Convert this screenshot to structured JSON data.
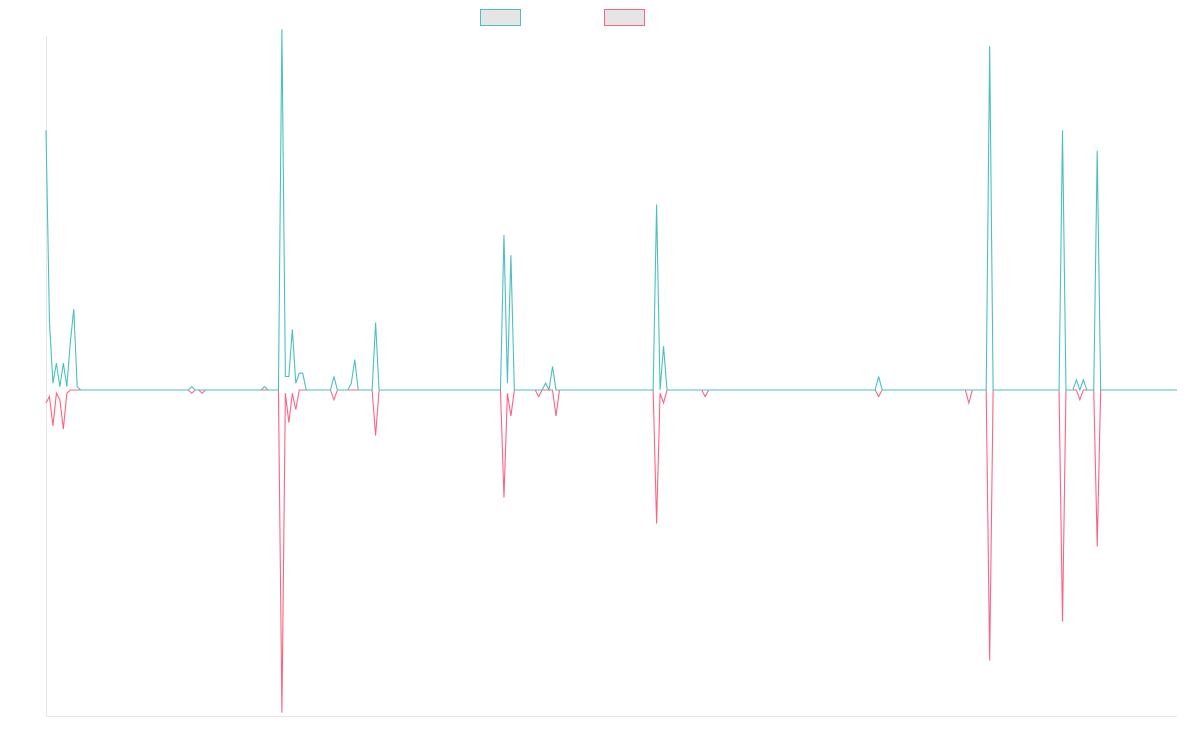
{
  "chart_data": {
    "type": "line",
    "title": "",
    "xlabel": "",
    "ylabel": "",
    "ylim": [
      -1.0,
      1.05
    ],
    "xlim": [
      0,
      326
    ],
    "grid": false,
    "legend_position": "top",
    "colors": {
      "series_1": "#4bc0c0",
      "series_2": "#ff6384",
      "legend_fill": "#e5e5e5"
    },
    "series": [
      {
        "legend_label": "",
        "points": [
          [
            0,
            0.77
          ],
          [
            1,
            0.2
          ],
          [
            2,
            0.02
          ],
          [
            3,
            0.08
          ],
          [
            4,
            0.01
          ],
          [
            5,
            0.08
          ],
          [
            6,
            0.01
          ],
          [
            7,
            0.14
          ],
          [
            8,
            0.24
          ],
          [
            9,
            0.01
          ],
          [
            10,
            0.0
          ],
          [
            41,
            0.0
          ],
          [
            42,
            0.01
          ],
          [
            43,
            0.0
          ],
          [
            44,
            0.0
          ],
          [
            45,
            0.0
          ],
          [
            46,
            0.0
          ],
          [
            47,
            0.0
          ],
          [
            54,
            0.0
          ],
          [
            62,
            0.0
          ],
          [
            63,
            0.01
          ],
          [
            64,
            0.0
          ],
          [
            67,
            0.0
          ],
          [
            68,
            1.07
          ],
          [
            69,
            0.04
          ],
          [
            70,
            0.04
          ],
          [
            71,
            0.18
          ],
          [
            72,
            0.02
          ],
          [
            73,
            0.05
          ],
          [
            74,
            0.05
          ],
          [
            75,
            0.0
          ],
          [
            82,
            0.0
          ],
          [
            83,
            0.04
          ],
          [
            84,
            0.0
          ],
          [
            87,
            0.0
          ],
          [
            88,
            0.02
          ],
          [
            89,
            0.09
          ],
          [
            90,
            0.0
          ],
          [
            94,
            0.0
          ],
          [
            95,
            0.2
          ],
          [
            96,
            0.0
          ],
          [
            103,
            0.0
          ],
          [
            104,
            0.0
          ],
          [
            105,
            0.0
          ],
          [
            118,
            0.0
          ],
          [
            119,
            0.0
          ],
          [
            120,
            0.0
          ],
          [
            131,
            0.0
          ],
          [
            132,
            0.46
          ],
          [
            133,
            0.02
          ],
          [
            134,
            0.4
          ],
          [
            135,
            0.0
          ],
          [
            137,
            0.0
          ],
          [
            138,
            0.0
          ],
          [
            139,
            0.0
          ],
          [
            140,
            0.0
          ],
          [
            141,
            0.0
          ],
          [
            142,
            0.0
          ],
          [
            143,
            0.0
          ],
          [
            144,
            0.02
          ],
          [
            145,
            0.0
          ],
          [
            146,
            0.07
          ],
          [
            147,
            0.0
          ],
          [
            160,
            0.0
          ],
          [
            161,
            0.0
          ],
          [
            167,
            0.0
          ],
          [
            168,
            0.0
          ],
          [
            169,
            0.0
          ],
          [
            175,
            0.0
          ],
          [
            176,
            0.55
          ],
          [
            177,
            0.0
          ],
          [
            178,
            0.13
          ],
          [
            179,
            0.0
          ],
          [
            189,
            0.0
          ],
          [
            190,
            0.0
          ],
          [
            191,
            0.0
          ],
          [
            239,
            0.0
          ],
          [
            240,
            0.04
          ],
          [
            241,
            0.0
          ],
          [
            265,
            0.0
          ],
          [
            266,
            0.0
          ],
          [
            267,
            0.0
          ],
          [
            271,
            0.0
          ],
          [
            272,
            1.02
          ],
          [
            273,
            0.0
          ],
          [
            292,
            0.0
          ],
          [
            293,
            0.77
          ],
          [
            294,
            0.0
          ],
          [
            296,
            0.0
          ],
          [
            297,
            0.03
          ],
          [
            298,
            0.0
          ],
          [
            299,
            0.03
          ],
          [
            300,
            0.0
          ],
          [
            302,
            0.0
          ],
          [
            303,
            0.71
          ],
          [
            304,
            0.0
          ],
          [
            326,
            0.0
          ]
        ]
      },
      {
        "legend_label": "",
        "points": [
          [
            0,
            -0.04
          ],
          [
            1,
            -0.02
          ],
          [
            2,
            -0.11
          ],
          [
            3,
            -0.01
          ],
          [
            4,
            -0.03
          ],
          [
            5,
            -0.12
          ],
          [
            6,
            -0.01
          ],
          [
            7,
            0.0
          ],
          [
            41,
            0.0
          ],
          [
            42,
            -0.01
          ],
          [
            43,
            0.0
          ],
          [
            44,
            0.0
          ],
          [
            45,
            -0.01
          ],
          [
            46,
            0.0
          ],
          [
            54,
            0.0
          ],
          [
            62,
            0.0
          ],
          [
            63,
            0.0
          ],
          [
            64,
            0.0
          ],
          [
            67,
            0.0
          ],
          [
            68,
            -0.99
          ],
          [
            69,
            -0.01
          ],
          [
            70,
            -0.1
          ],
          [
            71,
            -0.01
          ],
          [
            72,
            -0.06
          ],
          [
            73,
            0.0
          ],
          [
            82,
            0.0
          ],
          [
            83,
            -0.03
          ],
          [
            84,
            0.0
          ],
          [
            87,
            0.0
          ],
          [
            88,
            0.0
          ],
          [
            94,
            0.0
          ],
          [
            95,
            -0.14
          ],
          [
            96,
            0.0
          ],
          [
            118,
            0.0
          ],
          [
            119,
            0.0
          ],
          [
            131,
            0.0
          ],
          [
            132,
            -0.33
          ],
          [
            133,
            -0.01
          ],
          [
            134,
            -0.08
          ],
          [
            135,
            0.0
          ],
          [
            141,
            0.0
          ],
          [
            142,
            -0.02
          ],
          [
            143,
            0.0
          ],
          [
            146,
            0.0
          ],
          [
            147,
            -0.08
          ],
          [
            148,
            0.0
          ],
          [
            175,
            0.0
          ],
          [
            176,
            -0.41
          ],
          [
            177,
            -0.01
          ],
          [
            178,
            -0.04
          ],
          [
            179,
            0.0
          ],
          [
            189,
            0.0
          ],
          [
            190,
            -0.02
          ],
          [
            191,
            0.0
          ],
          [
            239,
            0.0
          ],
          [
            240,
            -0.02
          ],
          [
            241,
            0.0
          ],
          [
            265,
            0.0
          ],
          [
            266,
            -0.04
          ],
          [
            267,
            0.0
          ],
          [
            271,
            0.0
          ],
          [
            272,
            -0.83
          ],
          [
            273,
            0.0
          ],
          [
            292,
            0.0
          ],
          [
            293,
            -0.71
          ],
          [
            294,
            0.0
          ],
          [
            297,
            0.0
          ],
          [
            298,
            -0.03
          ],
          [
            299,
            0.0
          ],
          [
            302,
            0.0
          ],
          [
            303,
            -0.48
          ],
          [
            304,
            0.0
          ],
          [
            326,
            0.0
          ]
        ]
      }
    ]
  }
}
